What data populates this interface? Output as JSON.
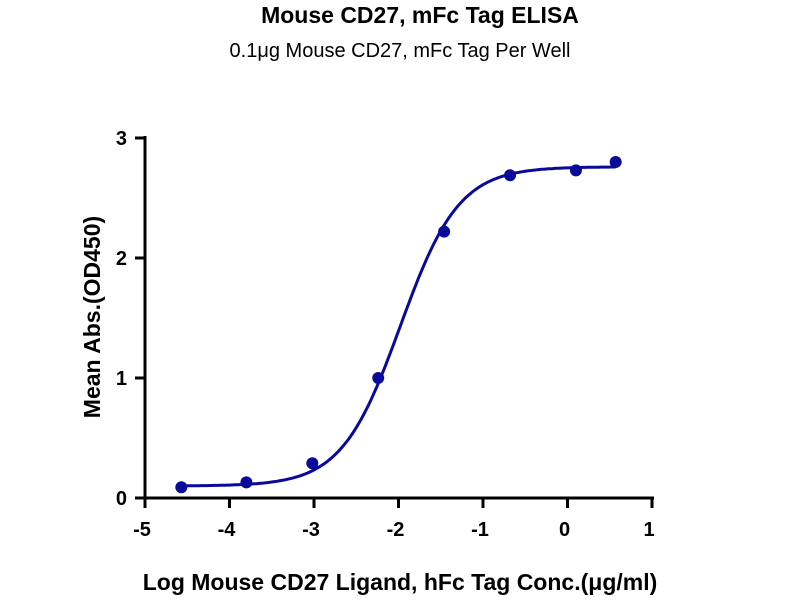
{
  "chart_data": {
    "type": "scatter",
    "title": "Mouse CD27, mFc Tag ELISA",
    "subtitle": "0.1μg Mouse CD27, mFc Tag Per Well",
    "xlabel": "Log Mouse CD27 Ligand, hFc Tag Conc.(μg/ml)",
    "ylabel": "Mean Abs.(OD450)",
    "xlim": [
      -5,
      1
    ],
    "ylim": [
      0,
      3
    ],
    "xticks": [
      "-5",
      "-4",
      "-3",
      "-2",
      "-1",
      "0",
      "1"
    ],
    "yticks": [
      "0",
      "1",
      "2",
      "3"
    ],
    "grid": false,
    "series": [
      {
        "name": "data",
        "x": [
          -4.57,
          -3.8,
          -3.02,
          -2.24,
          -1.46,
          -0.68,
          0.1,
          0.57
        ],
        "y": [
          0.09,
          0.13,
          0.29,
          1.0,
          2.22,
          2.69,
          2.73,
          2.8
        ]
      }
    ],
    "fit": {
      "model": "4PL",
      "bottom": 0.1,
      "top": 2.76,
      "logEC50": -1.98,
      "hill": 1.25
    },
    "color": "#0a0a9a"
  }
}
